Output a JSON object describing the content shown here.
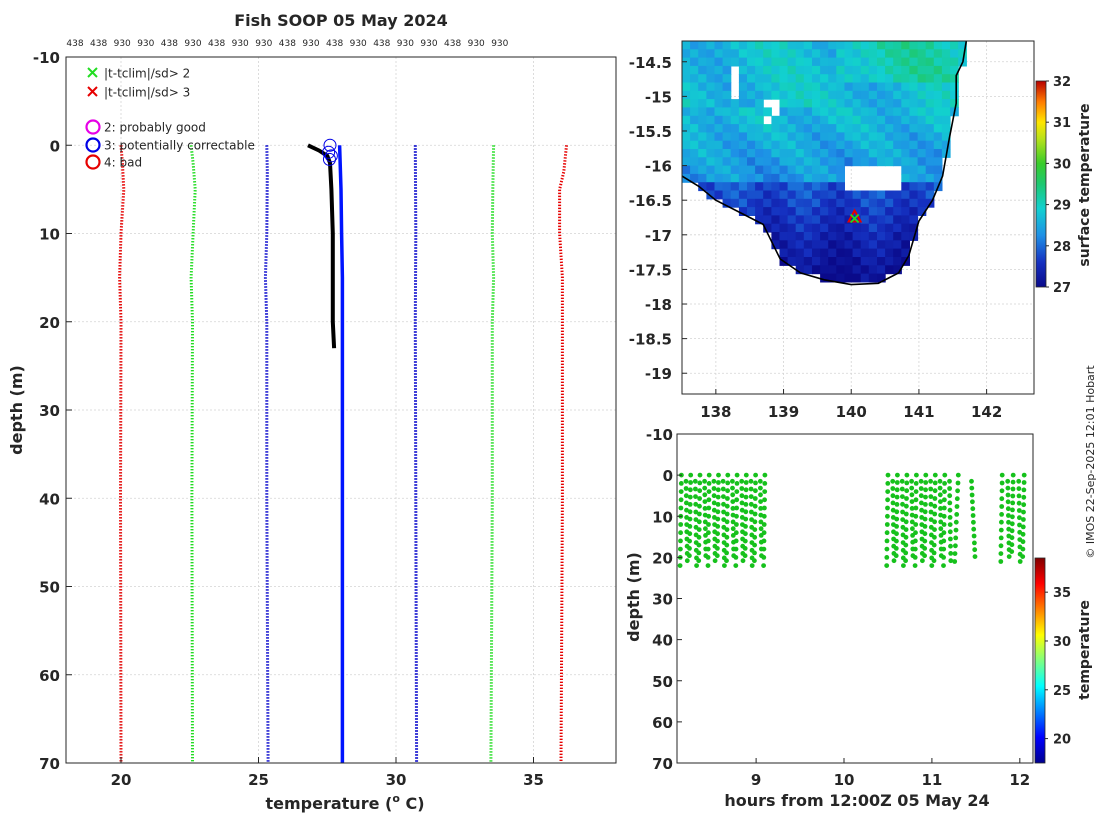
{
  "colors": {
    "clim_red": "#e60000",
    "clim_green": "#22dd22",
    "clim_blue": "#0000cc",
    "profile_blue": "#0014ff",
    "profile_black": "#000000",
    "land": "#ffffff",
    "dots": "#16c11c"
  },
  "chart_data": [
    {
      "name": "profile",
      "type": "line",
      "title": "Fish SOOP 05 May 2024",
      "top_labels": [
        "438",
        "438",
        "930",
        "930",
        "438",
        "930",
        "438",
        "930",
        "930",
        "438",
        "930",
        "438",
        "930",
        "438",
        "930",
        "930",
        "438",
        "930",
        "930"
      ],
      "xlabel": "temperature (° C)",
      "xlabel_parts": [
        "temperature (",
        "o",
        " C)"
      ],
      "ylabel": "depth (m)",
      "xlim": [
        18,
        38
      ],
      "ylim": [
        70,
        -10
      ],
      "xticks": [
        20,
        25,
        30,
        35
      ],
      "yticks": [
        -10,
        0,
        10,
        20,
        30,
        40,
        50,
        60,
        70
      ],
      "grid": true,
      "legend": {
        "position": "top-left",
        "entries": [
          {
            "marker": "x",
            "color": "#22dd22",
            "label": "|t-tclim|/sd> 2"
          },
          {
            "marker": "x",
            "color": "#e60000",
            "label": "|t-tclim|/sd> 3"
          },
          {
            "marker": "o",
            "color": "#e600e6",
            "label": "2: probably good"
          },
          {
            "marker": "o",
            "color": "#0000e6",
            "label": "3: potentially correctable"
          },
          {
            "marker": "o",
            "color": "#e60000",
            "label": "4: bad"
          }
        ]
      },
      "series": [
        {
          "name": "clim-3sd-low",
          "color": "#e60000",
          "style": "dotted",
          "points": [
            [
              20.0,
              0
            ],
            [
              20.05,
              2
            ],
            [
              20.1,
              5
            ],
            [
              20.0,
              10
            ],
            [
              19.95,
              15
            ],
            [
              20.0,
              20
            ],
            [
              19.98,
              40
            ],
            [
              20.0,
              70
            ]
          ]
        },
        {
          "name": "clim-2sd-low",
          "color": "#22dd22",
          "style": "dotted",
          "points": [
            [
              22.55,
              0
            ],
            [
              22.62,
              2
            ],
            [
              22.7,
              5
            ],
            [
              22.62,
              10
            ],
            [
              22.55,
              15
            ],
            [
              22.6,
              20
            ],
            [
              22.58,
              40
            ],
            [
              22.6,
              70
            ]
          ]
        },
        {
          "name": "clim-mean-low",
          "color": "#0000cc",
          "style": "dotted",
          "points": [
            [
              25.3,
              0
            ],
            [
              25.32,
              3
            ],
            [
              25.3,
              10
            ],
            [
              25.25,
              15
            ],
            [
              25.3,
              20
            ],
            [
              25.3,
              40
            ],
            [
              25.35,
              70
            ]
          ]
        },
        {
          "name": "clim-mean-high",
          "color": "#0000cc",
          "style": "dotted",
          "points": [
            [
              30.7,
              0
            ],
            [
              30.72,
              10
            ],
            [
              30.7,
              20
            ],
            [
              30.72,
              40
            ],
            [
              30.75,
              70
            ]
          ]
        },
        {
          "name": "clim-2sd-high",
          "color": "#22dd22",
          "style": "dotted",
          "points": [
            [
              33.55,
              0
            ],
            [
              33.52,
              5
            ],
            [
              33.5,
              10
            ],
            [
              33.55,
              15
            ],
            [
              33.5,
              20
            ],
            [
              33.5,
              40
            ],
            [
              33.45,
              70
            ]
          ]
        },
        {
          "name": "clim-3sd-high",
          "color": "#e60000",
          "style": "dotted",
          "points": [
            [
              36.2,
              0
            ],
            [
              36.1,
              3
            ],
            [
              35.95,
              5
            ],
            [
              35.95,
              10
            ],
            [
              36.05,
              15
            ],
            [
              36.05,
              20
            ],
            [
              36.05,
              40
            ],
            [
              36.0,
              70
            ]
          ]
        },
        {
          "name": "profile-flagged",
          "color": "#0014ff",
          "style": "solid",
          "points": [
            [
              27.95,
              0
            ],
            [
              28.0,
              5
            ],
            [
              28.02,
              10
            ],
            [
              28.05,
              15
            ],
            [
              28.05,
              20
            ],
            [
              28.05,
              30
            ],
            [
              28.05,
              40
            ],
            [
              28.05,
              70
            ]
          ]
        },
        {
          "name": "profile-raw",
          "color": "#000000",
          "style": "solid",
          "points": [
            [
              26.8,
              0
            ],
            [
              27.2,
              0.6
            ],
            [
              27.5,
              1.2
            ],
            [
              27.6,
              2
            ],
            [
              27.65,
              5
            ],
            [
              27.7,
              10
            ],
            [
              27.7,
              15
            ],
            [
              27.7,
              20
            ],
            [
              27.75,
              23
            ]
          ]
        }
      ],
      "flag_markers": [
        {
          "temp": 27.6,
          "depth": 0.0,
          "flag": 3
        },
        {
          "temp": 27.55,
          "depth": 0.8,
          "flag": 3
        },
        {
          "temp": 27.65,
          "depth": 1.2,
          "flag": 3
        },
        {
          "temp": 27.58,
          "depth": 1.6,
          "flag": 3
        }
      ]
    },
    {
      "name": "map",
      "type": "heatmap",
      "xlim": [
        137.5,
        142.7
      ],
      "ylim": [
        -19.3,
        -14.2
      ],
      "xticks": [
        138,
        139,
        140,
        141,
        142
      ],
      "yticks": [
        -14.5,
        -15,
        -15.5,
        -16,
        -16.5,
        -17,
        -17.5,
        -18,
        -18.5,
        -19
      ],
      "xtick_labels": [
        "138",
        "139",
        "140",
        "141",
        "142"
      ],
      "ytick_labels": [
        "-14.5",
        "-15",
        "-15.5",
        "-16",
        "-16.5",
        "-17",
        "-17.5",
        "-18",
        "-18.5",
        "-19"
      ],
      "colorbar": {
        "label": "surface temperature",
        "range": [
          27,
          32
        ],
        "ticks": [
          27,
          28,
          29,
          30,
          31,
          32
        ]
      },
      "coastline": [
        [
          137.5,
          -16.15
        ],
        [
          137.75,
          -16.3
        ],
        [
          138.0,
          -16.5
        ],
        [
          138.4,
          -16.7
        ],
        [
          138.7,
          -16.85
        ],
        [
          138.8,
          -17.05
        ],
        [
          138.95,
          -17.35
        ],
        [
          139.25,
          -17.55
        ],
        [
          139.6,
          -17.65
        ],
        [
          140.0,
          -17.72
        ],
        [
          140.4,
          -17.7
        ],
        [
          140.7,
          -17.55
        ],
        [
          140.85,
          -17.3
        ],
        [
          141.0,
          -16.8
        ],
        [
          141.2,
          -16.5
        ],
        [
          141.35,
          -16.15
        ],
        [
          141.45,
          -15.6
        ],
        [
          141.55,
          -15.1
        ],
        [
          141.55,
          -14.7
        ],
        [
          141.65,
          -14.5
        ],
        [
          141.7,
          -14.2
        ]
      ],
      "ship_marker": {
        "lon": 140.05,
        "lat": -16.75
      }
    },
    {
      "name": "time-depth",
      "type": "scatter",
      "xlabel": "hours from 12:00Z 05 May 24",
      "ylabel": "depth (m)",
      "xlim": [
        8.1,
        12.15
      ],
      "ylim": [
        70,
        -10
      ],
      "xticks": [
        9,
        10,
        11,
        12
      ],
      "yticks": [
        -10,
        0,
        10,
        20,
        30,
        40,
        50,
        60,
        70
      ],
      "colorbar": {
        "label": "temperature",
        "range": [
          17.5,
          38.5
        ],
        "ticks": [
          20,
          25,
          30,
          35
        ]
      },
      "point_color_value": 27.8,
      "dive_segments": [
        {
          "t_start": 8.15,
          "t_end": 9.1,
          "dives": 19,
          "depth_min": 0,
          "depth_max": 22
        },
        {
          "t_start": 10.5,
          "t_end": 11.2,
          "dives": 14,
          "depth_min": 0,
          "depth_max": 22
        },
        {
          "t_start": 11.3,
          "t_end": 11.45,
          "dives": 2,
          "depth_min": 0,
          "depth_max": 21
        },
        {
          "t_start": 11.8,
          "t_end": 12.05,
          "dives": 5,
          "depth_min": 0,
          "depth_max": 21
        }
      ]
    }
  ],
  "side_text": "© IMOS 22-Sep-2025 12:01 Hobart"
}
